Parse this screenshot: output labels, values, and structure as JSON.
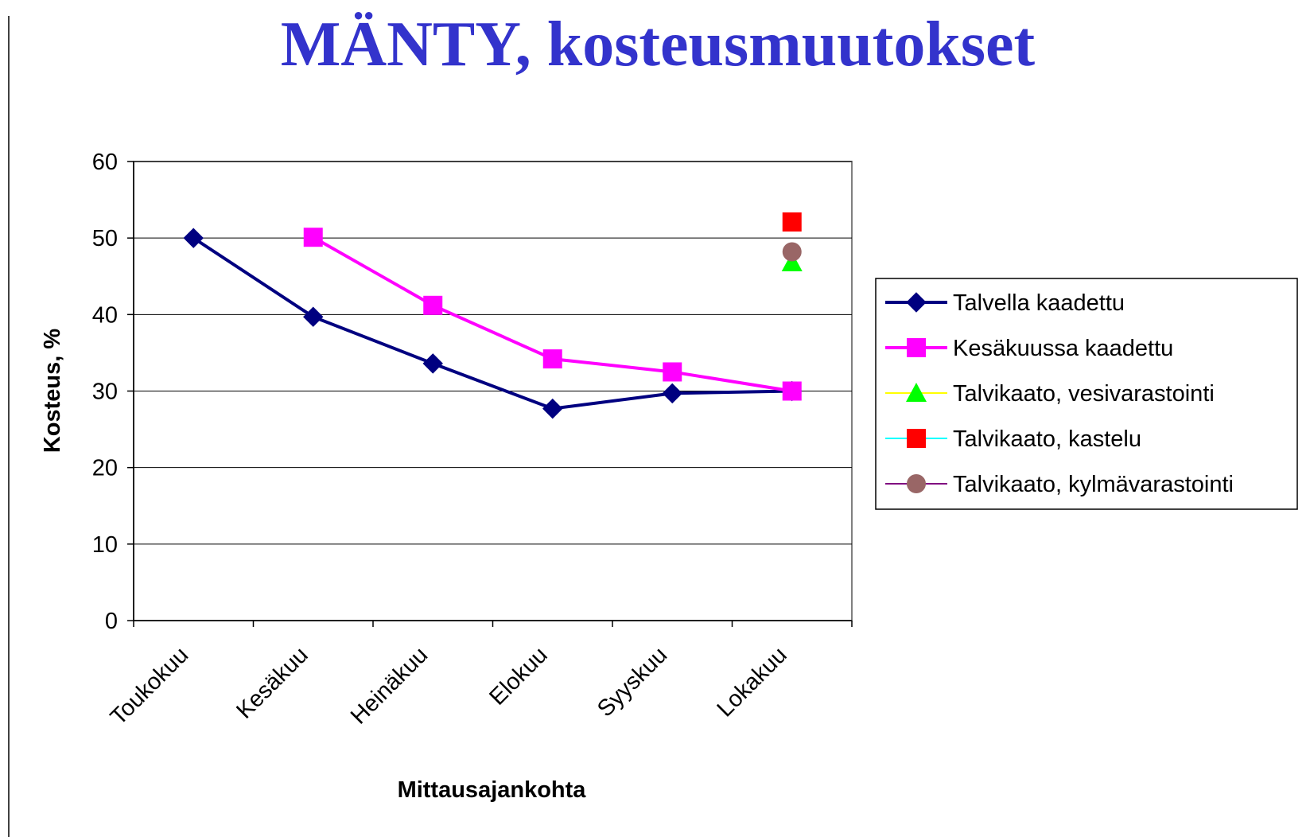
{
  "chart_data": {
    "type": "line",
    "title": "MÄNTY, kosteusmuutokset",
    "x_label": "Mittausajankohta",
    "y_label": "Kosteus, %",
    "categories": [
      "Toukokuu",
      "Kesäkuu",
      "Heinäkuu",
      "Elokuu",
      "Syyskuu",
      "Lokakuu"
    ],
    "ylim": [
      0,
      60
    ],
    "yticks": [
      0,
      10,
      20,
      30,
      40,
      50,
      60
    ],
    "grid": true,
    "legend": "right",
    "series": [
      {
        "name": "Talvella kaadettu",
        "color": "#000080",
        "line_color": "#000080",
        "marker": "diamond",
        "values": [
          50,
          39.7,
          33.6,
          27.7,
          29.7,
          30.0
        ]
      },
      {
        "name": "Kesäkuussa kaadettu",
        "color": "#ff00ff",
        "line_color": "#ff00ff",
        "marker": "square",
        "values": [
          null,
          50.1,
          41.2,
          34.2,
          32.5,
          30.0
        ]
      },
      {
        "name": "Talvikaato, vesivarastointi",
        "color": "#00ff00",
        "line_color": "#ffff00",
        "marker": "triangle",
        "values": [
          null,
          null,
          null,
          null,
          null,
          46.8
        ]
      },
      {
        "name": "Talvikaato, kastelu",
        "color": "#ff0000",
        "line_color": "#00ffff",
        "marker": "square",
        "values": [
          null,
          null,
          null,
          null,
          null,
          52.1
        ]
      },
      {
        "name": "Talvikaato, kylmävarastointi",
        "color": "#996666",
        "line_color": "#800080",
        "marker": "circle",
        "values": [
          null,
          null,
          null,
          null,
          null,
          48.2
        ]
      }
    ]
  }
}
